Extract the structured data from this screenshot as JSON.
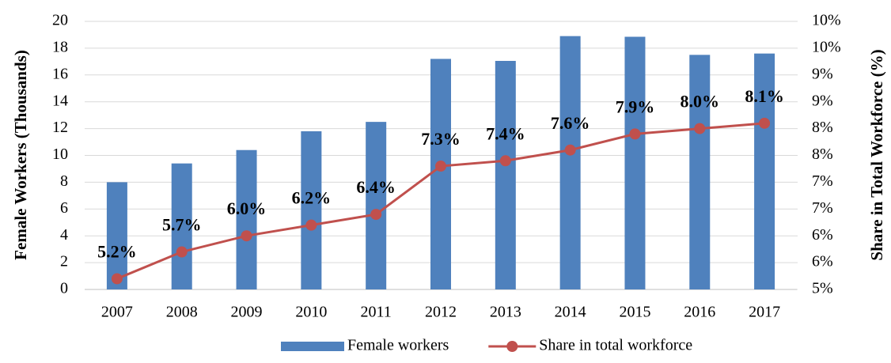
{
  "chart_data": {
    "type": "bar_line",
    "y_label": "Female Workers (Thousands)",
    "y2_label": "Share in Total Workforce (%)",
    "categories": [
      "2007",
      "2008",
      "2009",
      "2010",
      "2011",
      "2012",
      "2013",
      "2014",
      "2015",
      "2016",
      "2017"
    ],
    "series": [
      {
        "name": "Female workers",
        "type": "bar",
        "axis": "y",
        "color": "#4f81bd",
        "values": [
          8.0,
          9.4,
          10.4,
          11.8,
          12.5,
          17.2,
          17.05,
          18.9,
          18.85,
          17.5,
          17.6
        ]
      },
      {
        "name": "Share in total workforce",
        "type": "line",
        "axis": "y2",
        "color": "#c0504d",
        "values": [
          5.2,
          5.7,
          6.0,
          6.2,
          6.4,
          7.3,
          7.4,
          7.6,
          7.9,
          8.0,
          8.1
        ],
        "value_labels": [
          "5.2%",
          "5.7%",
          "6.0%",
          "6.2%",
          "6.4%",
          "7.3%",
          "7.4%",
          "7.6%",
          "7.9%",
          "8.0%",
          "8.1%"
        ]
      }
    ],
    "ylim": [
      0,
      20
    ],
    "yticks": [
      0,
      2,
      4,
      6,
      8,
      10,
      12,
      14,
      16,
      18,
      20
    ],
    "y2lim": [
      5,
      10
    ],
    "y2ticks": [
      {
        "value": 5,
        "label": "5%"
      },
      {
        "value": 5.5,
        "label": "6%"
      },
      {
        "value": 6,
        "label": "6%"
      },
      {
        "value": 6.5,
        "label": "7%"
      },
      {
        "value": 7,
        "label": "7%"
      },
      {
        "value": 7.5,
        "label": "8%"
      },
      {
        "value": 8,
        "label": "8%"
      },
      {
        "value": 8.5,
        "label": "9%"
      },
      {
        "value": 9,
        "label": "9%"
      },
      {
        "value": 9.5,
        "label": "10%"
      },
      {
        "value": 10,
        "label": "10%"
      }
    ],
    "grid": true,
    "legend": "bottom"
  }
}
